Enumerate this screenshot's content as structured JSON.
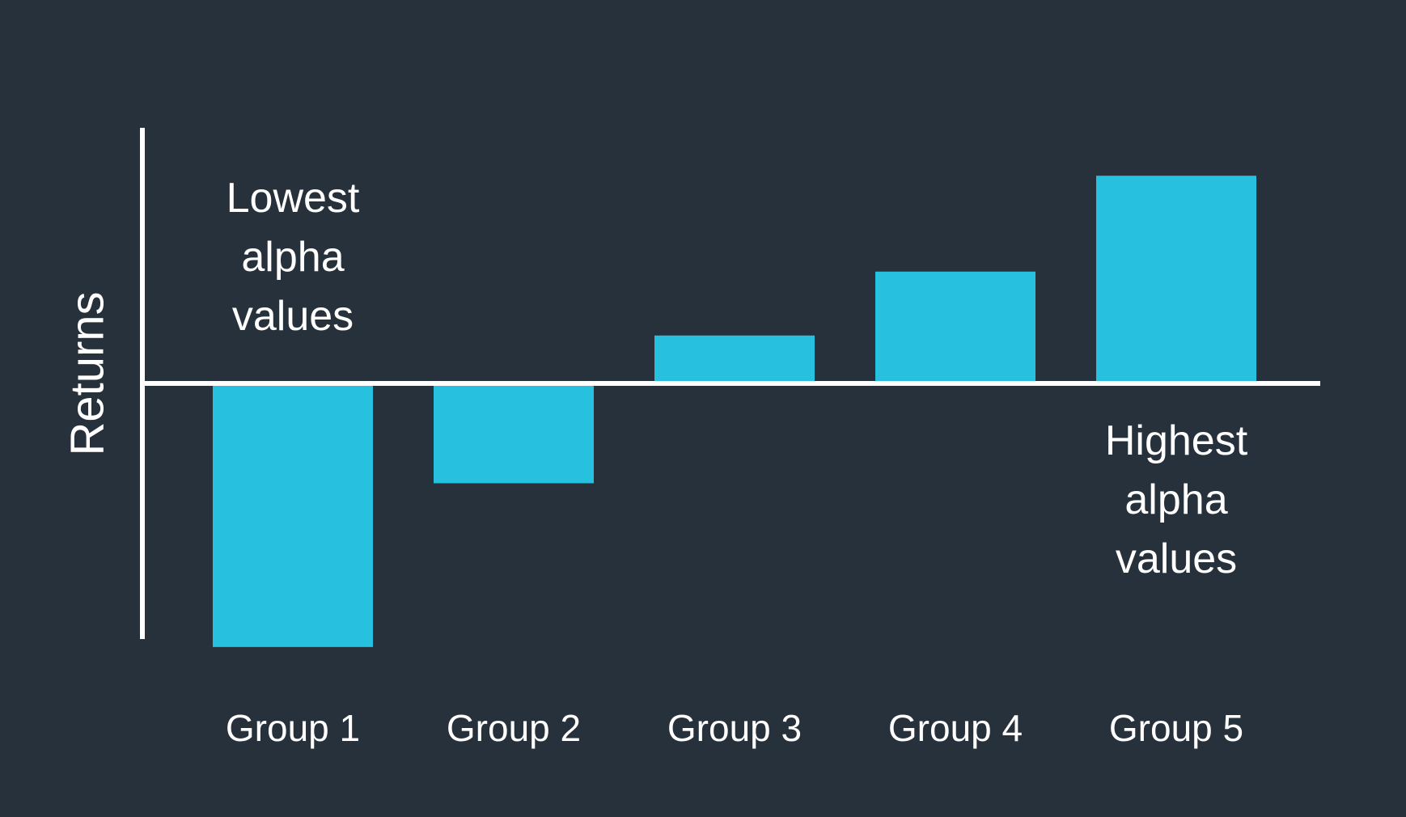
{
  "chart_data": {
    "type": "bar",
    "categories": [
      "Group 1",
      "Group 2",
      "Group 3",
      "Group 4",
      "Group 5"
    ],
    "values": [
      -3.3,
      -1.25,
      0.6,
      1.4,
      2.6
    ],
    "ylabel": "Returns",
    "xlabel": "",
    "ylim": [
      -3.2,
      3.2
    ],
    "grid": false,
    "bar_color": "#27c0df",
    "background_color": "#27313b",
    "axis_color": "#ffffff",
    "annotations": [
      {
        "lines": [
          "Lowest",
          "alpha",
          "values"
        ],
        "category": "Group 1",
        "placement": "above-zero"
      },
      {
        "lines": [
          "Highest",
          "alpha",
          "values"
        ],
        "category": "Group 5",
        "placement": "below-zero"
      }
    ]
  }
}
